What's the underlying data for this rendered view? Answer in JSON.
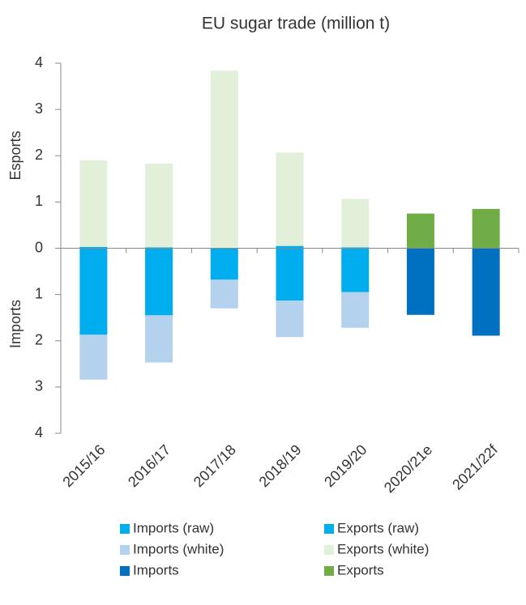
{
  "chart_data": {
    "type": "bar",
    "title": "EU sugar trade (million t)",
    "y_label_upper": "Esports",
    "y_label_lower": "Imports",
    "categories": [
      "2015/16",
      "2016/17",
      "2017/18",
      "2018/19",
      "2019/20",
      "2020/21e",
      "2021/22f"
    ],
    "series": [
      {
        "name": "Imports (raw)",
        "color": "#00aeef",
        "values": [
          -1.87,
          -1.45,
          -0.68,
          -1.13,
          -0.95,
          null,
          null
        ]
      },
      {
        "name": "Exports (raw)",
        "color": "#00aeef",
        "values": [
          0.03,
          0.02,
          0.01,
          0.05,
          0.02,
          null,
          null
        ]
      },
      {
        "name": "Imports (white)",
        "color": "#b4d1ee",
        "values": [
          -0.97,
          -1.02,
          -0.62,
          -0.79,
          -0.77,
          null,
          null
        ]
      },
      {
        "name": "Exports (white)",
        "color": "#e2f0d9",
        "values": [
          1.87,
          1.81,
          3.83,
          2.02,
          1.05,
          null,
          null
        ]
      },
      {
        "name": "Imports",
        "color": "#0070c0",
        "values": [
          null,
          null,
          null,
          null,
          null,
          -1.44,
          -1.89
        ]
      },
      {
        "name": "Exports",
        "color": "#70ad47",
        "values": [
          null,
          null,
          null,
          null,
          null,
          0.75,
          0.85
        ]
      }
    ],
    "stacked": true,
    "ylim": [
      -4,
      4
    ],
    "yticks": [
      {
        "value": -4,
        "label": "4"
      },
      {
        "value": -3,
        "label": "3"
      },
      {
        "value": -2,
        "label": "2"
      },
      {
        "value": -1,
        "label": "1"
      },
      0,
      1,
      2,
      3,
      4
    ]
  }
}
